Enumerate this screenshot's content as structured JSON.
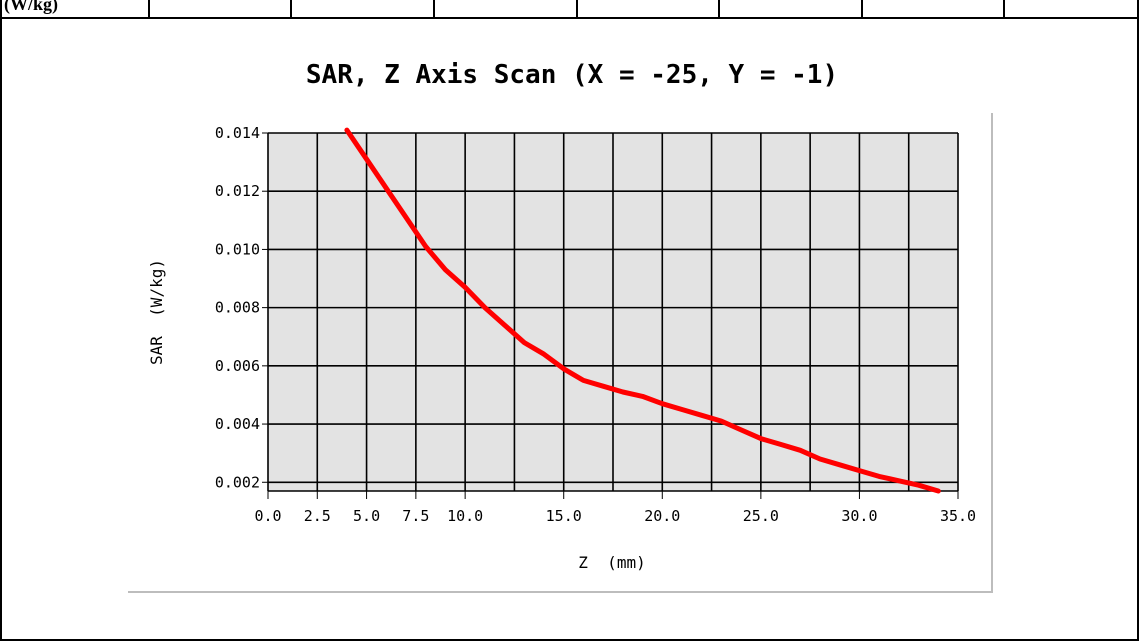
{
  "header": {
    "first_cell_text": "(W/kg)"
  },
  "chart_data": {
    "type": "line",
    "title": "SAR, Z Axis Scan (X = -25, Y = -1)",
    "xlabel": "Z  (mm)",
    "ylabel": "SAR  (W/kg)",
    "xlim": [
      0,
      35
    ],
    "ylim": [
      0.0017,
      0.014
    ],
    "x_ticks": [
      0.0,
      2.5,
      5.0,
      7.5,
      10.0,
      15.0,
      20.0,
      25.0,
      30.0,
      35.0
    ],
    "x_tick_labels": [
      "0.0",
      "2.5",
      "5.0",
      "7.5",
      "10.0",
      "15.0",
      "20.0",
      "25.0",
      "30.0",
      "35.0"
    ],
    "y_ticks": [
      0.002,
      0.004,
      0.006,
      0.008,
      0.01,
      0.012,
      0.014
    ],
    "y_tick_labels": [
      "0.002",
      "0.004",
      "0.006",
      "0.008",
      "0.010",
      "0.012",
      "0.014"
    ],
    "grid": true,
    "plot_background": "#e3e3e3",
    "series": [
      {
        "color": "#ff0000",
        "x": [
          4.0,
          5.0,
          6.0,
          7.0,
          8.0,
          9.0,
          10.0,
          11.0,
          12.0,
          13.0,
          14.0,
          15.0,
          16.0,
          17.0,
          18.0,
          19.0,
          20.0,
          21.0,
          22.0,
          23.0,
          24.0,
          25.0,
          26.0,
          27.0,
          28.0,
          29.0,
          30.0,
          31.0,
          32.0,
          33.0,
          34.0
        ],
        "y": [
          0.0141,
          0.0131,
          0.0121,
          0.0111,
          0.0101,
          0.0093,
          0.0087,
          0.008,
          0.0074,
          0.0068,
          0.0064,
          0.0059,
          0.0055,
          0.0053,
          0.0051,
          0.00495,
          0.0047,
          0.0045,
          0.0043,
          0.0041,
          0.0038,
          0.0035,
          0.0033,
          0.0031,
          0.0028,
          0.0026,
          0.0024,
          0.0022,
          0.00205,
          0.0019,
          0.0017
        ]
      }
    ]
  }
}
